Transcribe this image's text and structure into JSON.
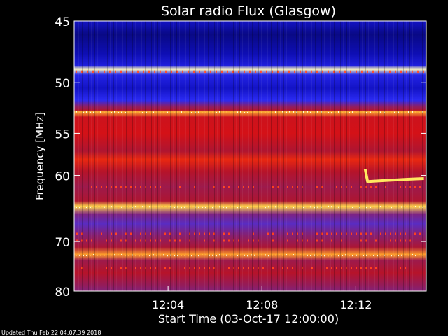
{
  "chart_data": {
    "type": "heatmap",
    "title": "Solar radio Flux (Glasgow)",
    "xlabel": "Start Time (03-Oct-17 12:00:00)",
    "ylabel": "Frequency [MHz]",
    "x_unit": "minutes after 12:00",
    "xlim": [
      0.0,
      15.0
    ],
    "ylim": [
      45,
      80
    ],
    "y_scale": "reciprocal",
    "x_ticks": [
      {
        "value": 4,
        "label": "12:04"
      },
      {
        "value": 8,
        "label": "12:08"
      },
      {
        "value": 12,
        "label": "12:12"
      }
    ],
    "y_ticks": [
      {
        "value": 45,
        "label": "45"
      },
      {
        "value": 50,
        "label": "50"
      },
      {
        "value": 55,
        "label": "55"
      },
      {
        "value": 60,
        "label": "60"
      },
      {
        "value": 70,
        "label": "70"
      },
      {
        "value": 80,
        "label": "80"
      }
    ],
    "grid": false,
    "colormap": [
      "#000040",
      "#1010c0",
      "#3030ff",
      "#6a2aa8",
      "#8a1f6a",
      "#b0142e",
      "#e01010",
      "#ff6010",
      "#ffd040",
      "#ffffc8"
    ],
    "intensity_profile": [
      {
        "freq": 45.0,
        "level": 0.12
      },
      {
        "freq": 46.0,
        "level": 0.06
      },
      {
        "freq": 47.5,
        "level": 0.1
      },
      {
        "freq": 48.5,
        "level": 0.16
      },
      {
        "freq": 48.8,
        "level": 0.99
      },
      {
        "freq": 49.3,
        "level": 0.18
      },
      {
        "freq": 50.5,
        "level": 0.12
      },
      {
        "freq": 51.6,
        "level": 0.2
      },
      {
        "freq": 52.2,
        "level": 0.44
      },
      {
        "freq": 52.6,
        "level": 0.56
      },
      {
        "freq": 52.75,
        "level": 0.86
      },
      {
        "freq": 53.3,
        "level": 0.62
      },
      {
        "freq": 55.0,
        "level": 0.64
      },
      {
        "freq": 57.0,
        "level": 0.55
      },
      {
        "freq": 58.0,
        "level": 0.7
      },
      {
        "freq": 59.5,
        "level": 0.57
      },
      {
        "freq": 61.5,
        "level": 0.5
      },
      {
        "freq": 63.5,
        "level": 0.55
      },
      {
        "freq": 64.3,
        "level": 0.9
      },
      {
        "freq": 65.5,
        "level": 0.4
      },
      {
        "freq": 67.0,
        "level": 0.3
      },
      {
        "freq": 69.0,
        "level": 0.44
      },
      {
        "freq": 71.0,
        "level": 0.54
      },
      {
        "freq": 72.4,
        "level": 0.84
      },
      {
        "freq": 73.5,
        "level": 0.5
      },
      {
        "freq": 76.0,
        "level": 0.57
      },
      {
        "freq": 78.5,
        "level": 0.48
      },
      {
        "freq": 80.0,
        "level": 0.42
      }
    ],
    "burst_trace": [
      {
        "t": 12.4,
        "freq": 59.2
      },
      {
        "t": 12.5,
        "freq": 60.8
      },
      {
        "t": 13.0,
        "freq": 60.7
      },
      {
        "t": 13.6,
        "freq": 60.6
      },
      {
        "t": 14.2,
        "freq": 60.5
      },
      {
        "t": 14.9,
        "freq": 60.4
      }
    ],
    "footer": "Updated Thu Feb 22 04:07:39 2018"
  }
}
